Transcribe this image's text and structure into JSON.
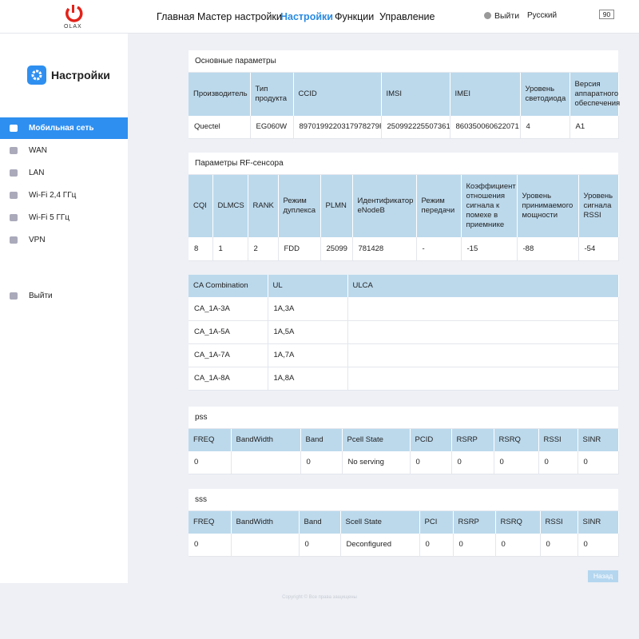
{
  "header": {
    "logo": "OLAX",
    "nav": [
      "Главная",
      "Мастер настройки",
      "Настройки",
      "Функции",
      "Управление"
    ],
    "active": 2,
    "logout": "Выйти",
    "language": "Русский",
    "battery": "90"
  },
  "sidebar": {
    "title": "Настройки",
    "items": [
      "Мобильная сеть",
      "WAN",
      "LAN",
      "Wi-Fi 2,4 ГГц",
      "Wi-Fi 5 ГГц",
      "VPN"
    ],
    "active": 0,
    "logout": "Выйти"
  },
  "panels": [
    {
      "title": "Основные параметры",
      "columns": [
        "Производитель",
        "Тип продукта",
        "CCID",
        "IMSI",
        "IMEI",
        "Уровень светодиода",
        "Версия аппаратного обеспечения"
      ],
      "rows": [
        [
          "Quectel",
          "EG060W",
          "8970199220317978279F",
          "250992225507361",
          "860350060622071",
          "4",
          "A1"
        ]
      ]
    },
    {
      "title": "Параметры RF-сенсора",
      "columns": [
        "CQI",
        "DLMCS",
        "RANK",
        "Режим дуплекса",
        "PLMN",
        "Идентификатор eNodeB",
        "Режим передачи",
        "Коэффициент отношения сигнала к помехе в приемнике",
        "Уровень принимаемого мощности",
        "Уровень сигнала RSSI"
      ],
      "rows": [
        [
          "8",
          "1",
          "2",
          "FDD",
          "25099",
          "781428",
          "-",
          "-15",
          "-88",
          "-54"
        ]
      ]
    },
    {
      "columns": [
        "CA Combination",
        "UL",
        "ULCA"
      ],
      "rows": [
        [
          "CA_1A-3A",
          "1A,3A",
          null
        ],
        [
          "CA_1A-5A",
          "1A,5A",
          null
        ],
        [
          "CA_1A-7A",
          "1A,7A",
          null
        ],
        [
          "CA_1A-8A",
          "1A,8A",
          null
        ]
      ]
    },
    {
      "title": "pss",
      "columns": [
        "FREQ",
        "BandWidth",
        "Band",
        "Pcell State",
        "PCID",
        "RSRP",
        "RSRQ",
        "RSSI",
        "SINR"
      ],
      "rows": [
        [
          "0",
          null,
          "0",
          "No serving",
          "0",
          "0",
          "0",
          "0",
          "0"
        ]
      ]
    },
    {
      "title": "sss",
      "columns": [
        "FREQ",
        "BandWidth",
        "Band",
        "Scell State",
        "PCI",
        "RSRP",
        "RSRQ",
        "RSSI",
        "SINR"
      ],
      "rows": [
        [
          "0",
          null,
          "0",
          "Deconfigured",
          "0",
          "0",
          "0",
          "0",
          "0"
        ]
      ]
    }
  ],
  "footer": {
    "copyright": "Copyright © Все права защищены",
    "back": "Назад"
  }
}
